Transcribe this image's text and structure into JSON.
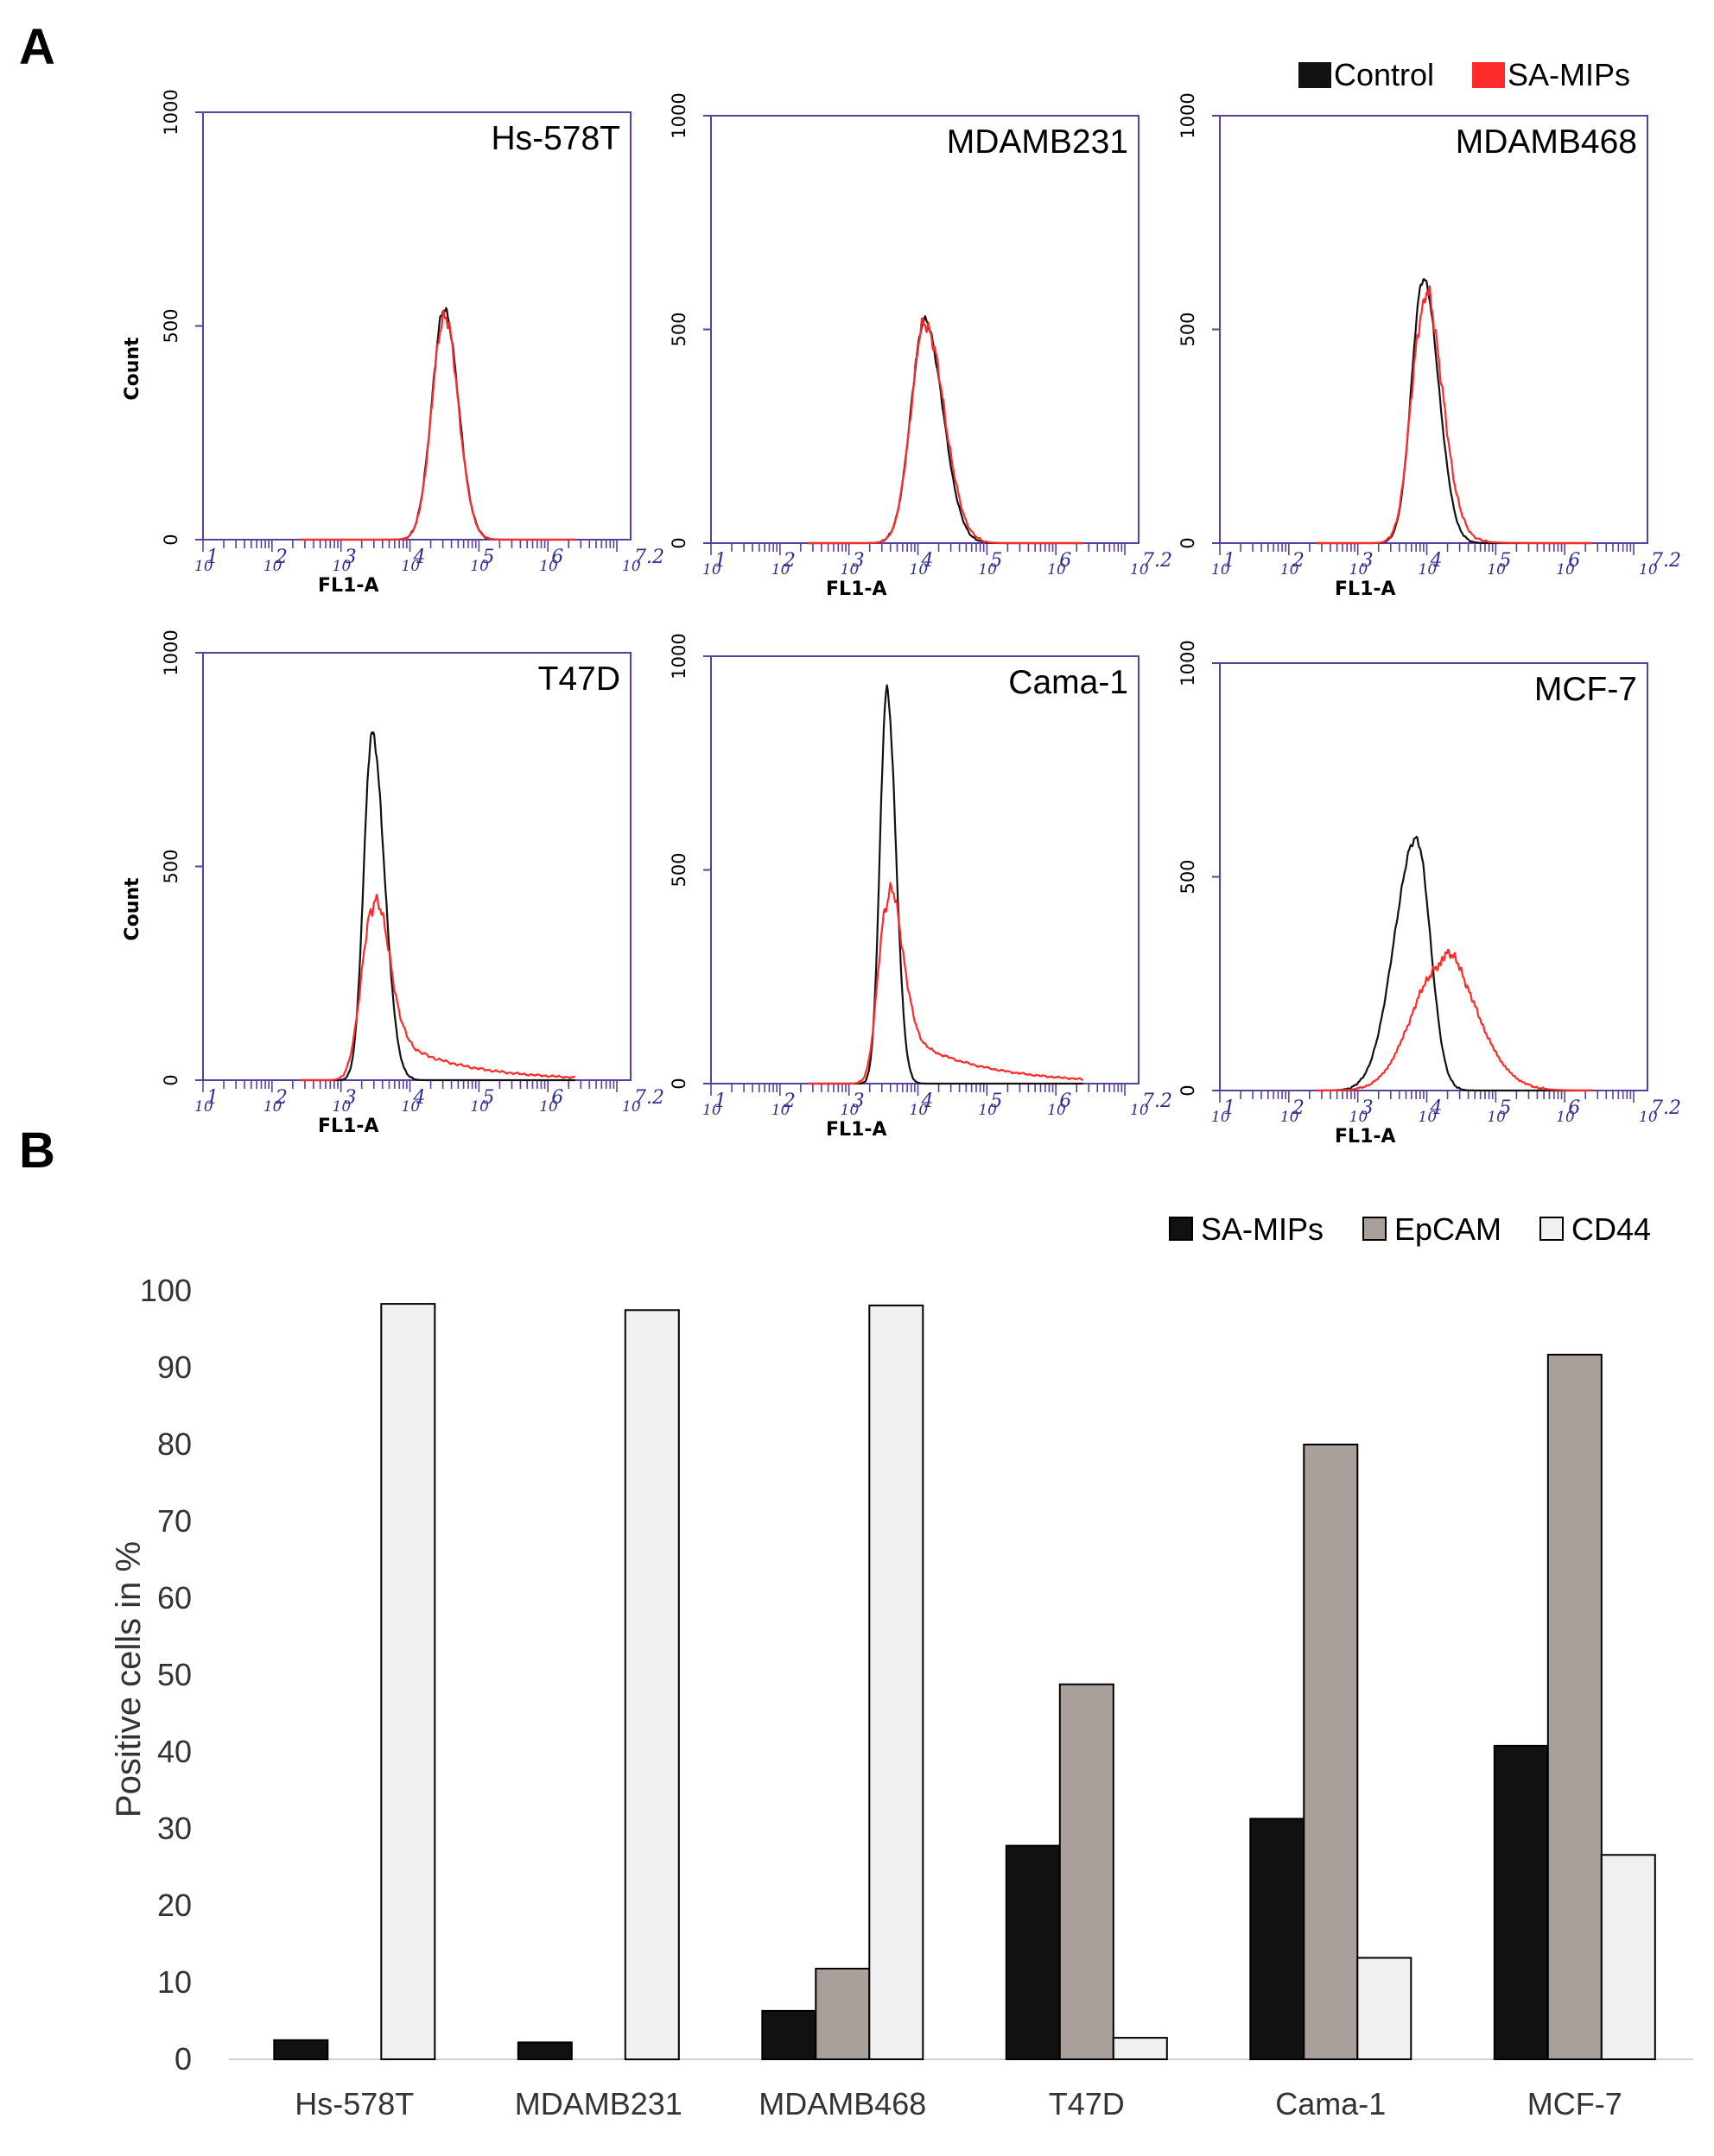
{
  "figure": {
    "panel_a_label": "A",
    "panel_b_label": "B"
  },
  "colors": {
    "control": "#111111",
    "sa_mips": "#ff2a2a",
    "frame": "#5b3f9e",
    "epcam": "#aaa09b",
    "cd44": "#f0f0f0"
  },
  "chart_data": [
    {
      "type": "line",
      "panel": "A",
      "title": "Hs-578T",
      "xlabel": "FL1-A",
      "ylabel": "Count",
      "x_scale": "log10",
      "xlim": [
        1,
        7.2
      ],
      "ylim": [
        0,
        1000
      ],
      "yticks": [
        "0",
        "500",
        "1000"
      ],
      "xticks": [
        "1",
        "2",
        "3",
        "4",
        "5",
        "6",
        "7.2"
      ],
      "legend": [
        "Control",
        "SA-MIPs"
      ],
      "legend_position": "top-right",
      "series": [
        {
          "name": "Control",
          "peak_log": 4.5,
          "peak_count": 540,
          "width_left": 0.18,
          "width_right": 0.2,
          "tail": 0
        },
        {
          "name": "SA-MIPs",
          "peak_log": 4.5,
          "peak_count": 525,
          "width_left": 0.18,
          "width_right": 0.2,
          "tail": 0
        }
      ]
    },
    {
      "type": "line",
      "panel": "A",
      "title": "MDAMB231",
      "xlabel": "FL1-A",
      "ylabel": "",
      "x_scale": "log10",
      "xlim": [
        1,
        7.2
      ],
      "ylim": [
        0,
        1000
      ],
      "yticks": [
        "0",
        "500",
        "1000"
      ],
      "xticks": [
        "1",
        "2",
        "3",
        "4",
        "5",
        "6",
        "7.2"
      ],
      "series": [
        {
          "name": "Control",
          "peak_log": 4.1,
          "peak_count": 520,
          "width_left": 0.2,
          "width_right": 0.26,
          "tail": 0
        },
        {
          "name": "SA-MIPs",
          "peak_log": 4.1,
          "peak_count": 515,
          "width_left": 0.2,
          "width_right": 0.28,
          "tail": 0
        }
      ]
    },
    {
      "type": "line",
      "panel": "A",
      "title": "MDAMB468",
      "xlabel": "FL1-A",
      "ylabel": "",
      "x_scale": "log10",
      "xlim": [
        1,
        7.2
      ],
      "ylim": [
        0,
        1000
      ],
      "yticks": [
        "0",
        "500",
        "1000"
      ],
      "xticks": [
        "1",
        "2",
        "3",
        "4",
        "5",
        "6",
        "7.2"
      ],
      "series": [
        {
          "name": "Control",
          "peak_log": 3.95,
          "peak_count": 620,
          "width_left": 0.17,
          "width_right": 0.22,
          "tail": 0
        },
        {
          "name": "SA-MIPs",
          "peak_log": 3.95,
          "peak_count": 545,
          "width_left": 0.18,
          "width_right": 0.26,
          "tail": 0.1
        }
      ]
    },
    {
      "type": "line",
      "panel": "A",
      "title": "T47D",
      "xlabel": "FL1-A",
      "ylabel": "Count",
      "x_scale": "log10",
      "xlim": [
        1,
        7.2
      ],
      "ylim": [
        0,
        1000
      ],
      "yticks": [
        "0",
        "500",
        "1000"
      ],
      "xticks": [
        "1",
        "2",
        "3",
        "4",
        "5",
        "6",
        "7.2"
      ],
      "series": [
        {
          "name": "Control",
          "peak_log": 3.45,
          "peak_count": 810,
          "width_left": 0.12,
          "width_right": 0.18,
          "tail": 0
        },
        {
          "name": "SA-MIPs",
          "peak_log": 3.45,
          "peak_count": 390,
          "width_left": 0.16,
          "width_right": 0.22,
          "tail": 0.45
        }
      ]
    },
    {
      "type": "line",
      "panel": "A",
      "title": "Cama-1",
      "xlabel": "FL1-A",
      "ylabel": "",
      "x_scale": "log10",
      "xlim": [
        1,
        7.2
      ],
      "ylim": [
        0,
        1000
      ],
      "yticks": [
        "0",
        "500",
        "1000"
      ],
      "xticks": [
        "1",
        "2",
        "3",
        "4",
        "5",
        "6",
        "7.2"
      ],
      "series": [
        {
          "name": "Control",
          "peak_log": 3.55,
          "peak_count": 920,
          "width_left": 0.1,
          "width_right": 0.13,
          "tail": 0
        },
        {
          "name": "SA-MIPs",
          "peak_log": 3.55,
          "peak_count": 420,
          "width_left": 0.13,
          "width_right": 0.2,
          "tail": 0.5
        }
      ]
    },
    {
      "type": "line",
      "panel": "A",
      "title": "MCF-7",
      "xlabel": "FL1-A",
      "ylabel": "",
      "x_scale": "log10",
      "xlim": [
        1,
        7.2
      ],
      "ylim": [
        0,
        1000
      ],
      "yticks": [
        "0",
        "500",
        "1000"
      ],
      "xticks": [
        "1",
        "2",
        "3",
        "4",
        "5",
        "6",
        "7.2"
      ],
      "series": [
        {
          "name": "Control",
          "peak_log": 3.85,
          "peak_count": 590,
          "width_left": 0.32,
          "width_right": 0.2,
          "tail": 0
        },
        {
          "name": "SA-MIPs",
          "peak_log": 4.2,
          "peak_count": 290,
          "width_left": 0.42,
          "width_right": 0.5,
          "tail": 0.15
        }
      ]
    },
    {
      "type": "bar",
      "panel": "B",
      "title": "",
      "xlabel": "",
      "ylabel": "Positive cells in %",
      "ylim": [
        0,
        100
      ],
      "yticks": [
        "0",
        "10",
        "20",
        "30",
        "40",
        "50",
        "60",
        "70",
        "80",
        "90",
        "100"
      ],
      "legend_position": "top-right",
      "categories": [
        "Hs-578T",
        "MDAMB231",
        "MDAMB468",
        "T47D",
        "Cama-1",
        "MCF-7"
      ],
      "series": [
        {
          "name": "SA-MIPs",
          "values": [
            2.5,
            2.2,
            6.3,
            27.8,
            31.3,
            40.8
          ]
        },
        {
          "name": "EpCAM",
          "values": [
            0,
            0,
            11.8,
            48.8,
            80.0,
            91.7
          ]
        },
        {
          "name": "CD44",
          "values": [
            98.3,
            97.5,
            98.1,
            2.8,
            13.2,
            26.6
          ]
        }
      ]
    }
  ]
}
